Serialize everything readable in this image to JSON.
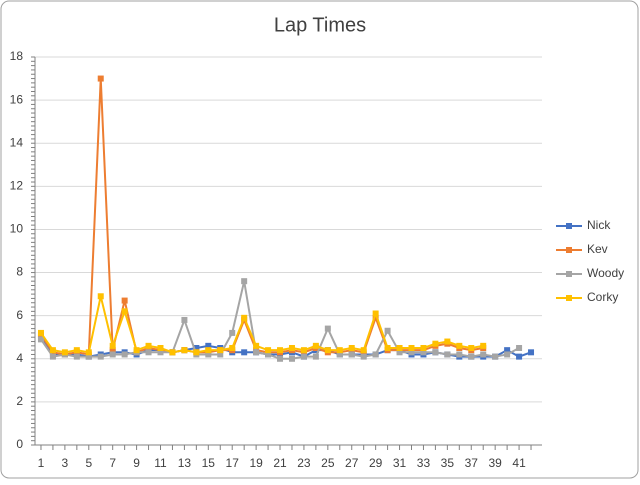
{
  "chart_data": {
    "type": "line",
    "title": "Lap Times",
    "categories": [
      1,
      null,
      3,
      null,
      5,
      null,
      7,
      null,
      9,
      null,
      11,
      null,
      13,
      null,
      15,
      null,
      17,
      null,
      19,
      null,
      21,
      null,
      23,
      null,
      25,
      null,
      27,
      null,
      29,
      null,
      31,
      null,
      33,
      null,
      35,
      null,
      37,
      null,
      39,
      null,
      41,
      null
    ],
    "series": [
      {
        "name": "Nick",
        "color": "#4472c4",
        "values": [
          5.0,
          4.2,
          4.2,
          4.2,
          4.1,
          4.2,
          4.3,
          4.3,
          4.2,
          4.4,
          4.4,
          4.3,
          4.4,
          4.5,
          4.6,
          4.5,
          4.3,
          4.3,
          4.3,
          4.2,
          4.2,
          4.3,
          4.1,
          4.4,
          4.4,
          4.2,
          4.2,
          4.2,
          4.2,
          4.4,
          4.4,
          4.2,
          4.2,
          4.3,
          4.2,
          4.1,
          4.1,
          4.1,
          4.1,
          4.4,
          4.1,
          4.3
        ]
      },
      {
        "name": "Kev",
        "color": "#ed7d31",
        "values": [
          5.1,
          4.3,
          4.2,
          4.3,
          4.2,
          17.0,
          4.4,
          6.7,
          4.3,
          4.5,
          4.4,
          4.3,
          4.4,
          4.3,
          4.3,
          4.4,
          4.4,
          5.8,
          4.4,
          4.3,
          4.3,
          4.4,
          4.3,
          4.5,
          4.3,
          4.3,
          4.4,
          4.3,
          5.9,
          4.4,
          4.4,
          4.4,
          4.4,
          4.6,
          4.7,
          4.5,
          4.4,
          4.5,
          null,
          null,
          null,
          null
        ]
      },
      {
        "name": "Woody",
        "color": "#a5a5a5",
        "values": [
          4.9,
          4.1,
          4.2,
          4.1,
          4.1,
          4.1,
          4.2,
          4.2,
          4.3,
          4.3,
          4.3,
          4.3,
          5.8,
          4.2,
          4.2,
          4.2,
          5.2,
          7.6,
          4.3,
          4.2,
          4.0,
          4.0,
          4.1,
          4.1,
          5.4,
          4.2,
          4.2,
          4.1,
          4.2,
          5.3,
          4.3,
          4.3,
          4.3,
          4.3,
          4.2,
          4.2,
          4.1,
          4.2,
          4.1,
          4.2,
          4.5,
          null
        ]
      },
      {
        "name": "Corky",
        "color": "#ffc000",
        "values": [
          5.2,
          4.4,
          4.3,
          4.4,
          4.3,
          6.9,
          4.6,
          6.2,
          4.4,
          4.6,
          4.5,
          4.3,
          4.4,
          4.3,
          4.4,
          4.4,
          4.5,
          5.9,
          4.6,
          4.4,
          4.4,
          4.5,
          4.4,
          4.6,
          4.4,
          4.4,
          4.5,
          4.4,
          6.1,
          4.5,
          4.5,
          4.5,
          4.5,
          4.7,
          4.8,
          4.6,
          4.5,
          4.6,
          null,
          null,
          null,
          null
        ]
      }
    ],
    "ylim": [
      0,
      18
    ],
    "yticks": [
      0,
      2,
      4,
      6,
      8,
      10,
      12,
      14,
      16,
      18
    ],
    "grid": true,
    "legend": "right"
  }
}
